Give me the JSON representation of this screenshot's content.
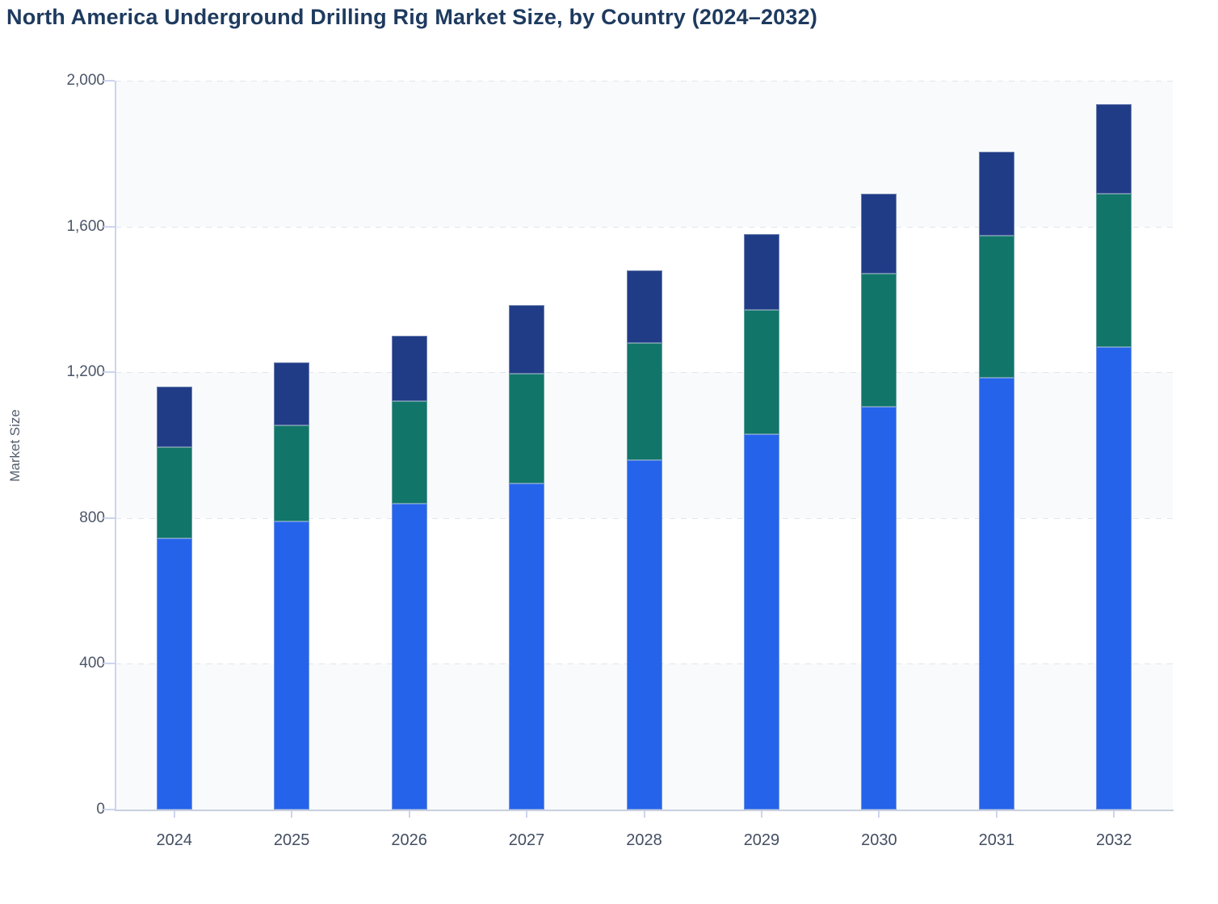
{
  "header": {
    "title": "North America Underground Drilling Rig Market Size, by Country (2024–2032)"
  },
  "chart_data": {
    "type": "bar",
    "stacked": true,
    "title": "North America Underground Drilling Rig Market Size, by Country (2024–2032)",
    "xlabel": "",
    "ylabel": "Market Size",
    "ylim": [
      0,
      2000
    ],
    "yticks": [
      0,
      400,
      800,
      1200,
      1600,
      2000
    ],
    "ytick_labels": [
      "0",
      "400",
      "800",
      "1,200",
      "1,600",
      "2,000"
    ],
    "categories": [
      "2024",
      "2025",
      "2026",
      "2027",
      "2028",
      "2029",
      "2030",
      "2031",
      "2032"
    ],
    "series": [
      {
        "name": "bottom-blue-segment",
        "color": "#2563eb",
        "values": [
          745,
          790,
          840,
          895,
          960,
          1030,
          1105,
          1185,
          1270
        ]
      },
      {
        "name": "middle-teal-segment",
        "color": "#11756a",
        "values": [
          250,
          265,
          280,
          300,
          320,
          340,
          365,
          390,
          420
        ]
      },
      {
        "name": "top-navy-segment",
        "color": "#213c87",
        "values": [
          165,
          173,
          180,
          190,
          200,
          210,
          220,
          230,
          245
        ]
      }
    ],
    "legend": "none",
    "grid": "horizontal-dashed",
    "plot_band_colors": [
      "#f8fafc",
      "#ffffff"
    ],
    "gridline_color": "#e2e5ec",
    "axis_line_color": "#ccd4ee",
    "tick_label_color": "#4c5668"
  }
}
